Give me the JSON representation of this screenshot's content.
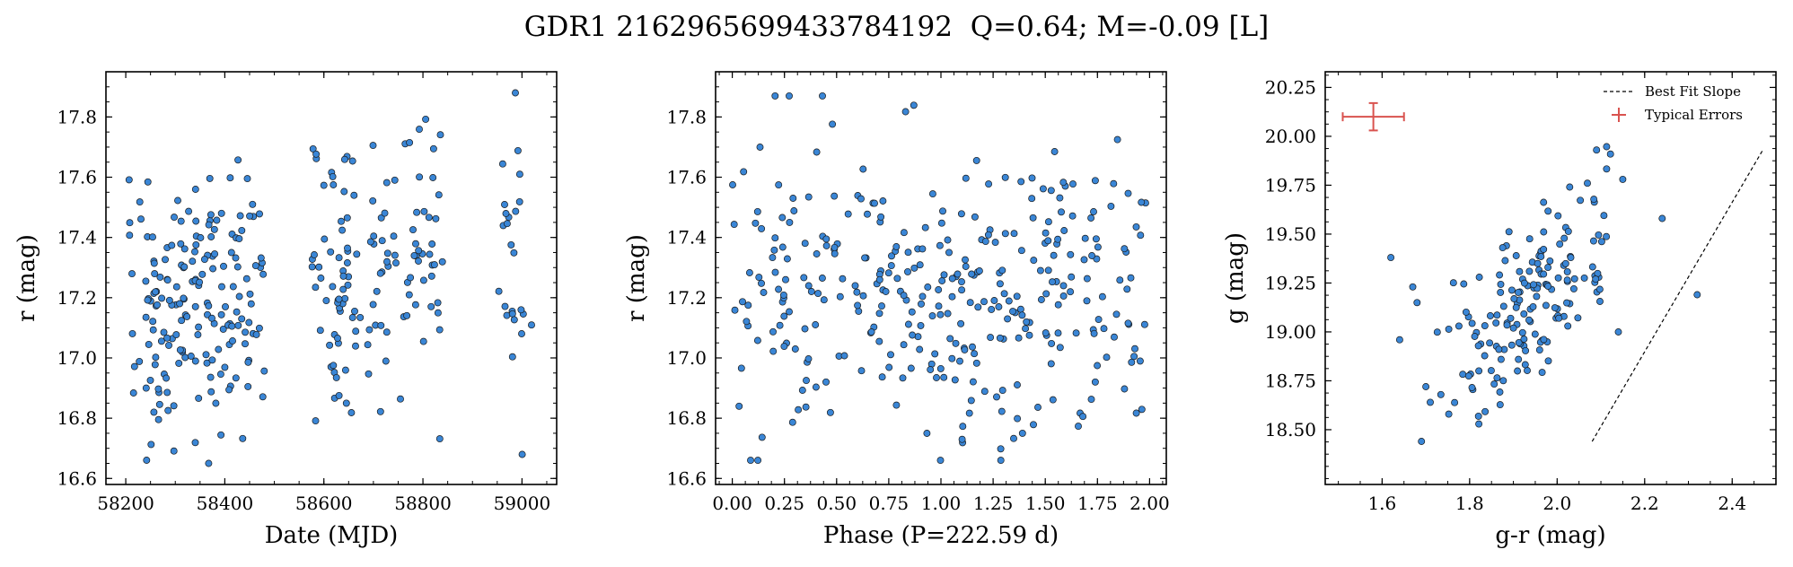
{
  "title": "GDR1 2162965699433784192  Q=0.64; M=-0.09 [L]",
  "colors": {
    "points": "#3a86d6",
    "edge": "#1a1a1a",
    "errors": "#d9534f",
    "axes": "#000000"
  },
  "chart_data": [
    {
      "type": "scatter",
      "xlabel": "Date (MJD)",
      "ylabel": "r (mag)",
      "xlim": [
        58160,
        59070
      ],
      "ylim": [
        17.95,
        16.58
      ],
      "y_inverted": true,
      "xticks": [
        58200,
        58400,
        58600,
        58800,
        59000
      ],
      "xtick_labels": [
        "58200",
        "58400",
        "58600",
        "58800",
        "59000"
      ],
      "yticks": [
        16.6,
        16.8,
        17.0,
        17.2,
        17.4,
        17.6,
        17.8
      ],
      "ytick_labels": [
        "16.6",
        "16.8",
        "17.0",
        "17.2",
        "17.4",
        "17.6",
        "17.8"
      ],
      "seasons": [
        {
          "x_range": [
            58205,
            58240
          ],
          "y_mean": 17.3,
          "n": 10,
          "seed": 11
        },
        {
          "x_range": [
            58240,
            58480
          ],
          "y_mean": 17.15,
          "n": 175,
          "seed": 12
        },
        {
          "x_range": [
            58575,
            58840
          ],
          "y_mean": 17.28,
          "n": 130,
          "seed": 13
        },
        {
          "x_range": [
            58950,
            59030
          ],
          "y_mean": 17.35,
          "n": 25,
          "seed": 14
        }
      ],
      "y_sd": 0.23
    },
    {
      "type": "scatter",
      "xlabel": "Phase (P=222.59 d)",
      "ylabel": "r (mag)",
      "xlim": [
        -0.08,
        2.08
      ],
      "ylim": [
        17.95,
        16.58
      ],
      "y_inverted": true,
      "xticks": [
        0.0,
        0.25,
        0.5,
        0.75,
        1.0,
        1.25,
        1.5,
        1.75,
        2.0
      ],
      "xtick_labels": [
        "0.00",
        "0.25",
        "0.50",
        "0.75",
        "1.00",
        "1.25",
        "1.50",
        "1.75",
        "2.00"
      ],
      "yticks": [
        16.6,
        16.8,
        17.0,
        17.2,
        17.4,
        17.6,
        17.8
      ],
      "ytick_labels": [
        "16.6",
        "16.8",
        "17.0",
        "17.2",
        "17.4",
        "17.6",
        "17.8"
      ],
      "phase": {
        "n": 340,
        "y_mean": 17.22,
        "y_sd": 0.24,
        "seed": 21
      }
    },
    {
      "type": "scatter",
      "xlabel": "g-r (mag)",
      "ylabel": "g (mag)",
      "xlim": [
        1.47,
        2.5
      ],
      "ylim": [
        20.33,
        18.22
      ],
      "y_inverted": true,
      "xticks": [
        1.6,
        1.8,
        2.0,
        2.2,
        2.4
      ],
      "xtick_labels": [
        "1.6",
        "1.8",
        "2.0",
        "2.2",
        "2.4"
      ],
      "yticks": [
        18.5,
        18.75,
        19.0,
        19.25,
        19.5,
        19.75,
        20.0,
        20.25
      ],
      "ytick_labels": [
        "18.50",
        "18.75",
        "19.00",
        "19.25",
        "19.50",
        "19.75",
        "20.00",
        "20.25"
      ],
      "cmd": {
        "n": 165,
        "x_mean": 1.93,
        "x_sd": 0.11,
        "slope": 2.1,
        "y_center": 19.12,
        "y_sd": 0.22,
        "seed": 31
      },
      "extra_points": [
        [
          1.62,
          19.38
        ],
        [
          1.64,
          18.96
        ],
        [
          1.67,
          19.23
        ],
        [
          1.69,
          18.44
        ],
        [
          1.7,
          18.72
        ],
        [
          1.71,
          18.64
        ],
        [
          2.14,
          19.0
        ],
        [
          2.15,
          19.78
        ],
        [
          2.24,
          19.58
        ],
        [
          2.32,
          19.19
        ],
        [
          1.68,
          19.15
        ],
        [
          2.09,
          19.93
        ]
      ],
      "best_fit_line": {
        "x": [
          2.08,
          2.47
        ],
        "y": [
          18.44,
          19.93
        ]
      },
      "typical_error": {
        "x": 1.58,
        "y": 20.1,
        "xerr": 0.07,
        "yerr": 0.07
      },
      "legend": {
        "entries": [
          "Best Fit Slope",
          "Typical Errors"
        ],
        "position": "top-right"
      }
    }
  ]
}
